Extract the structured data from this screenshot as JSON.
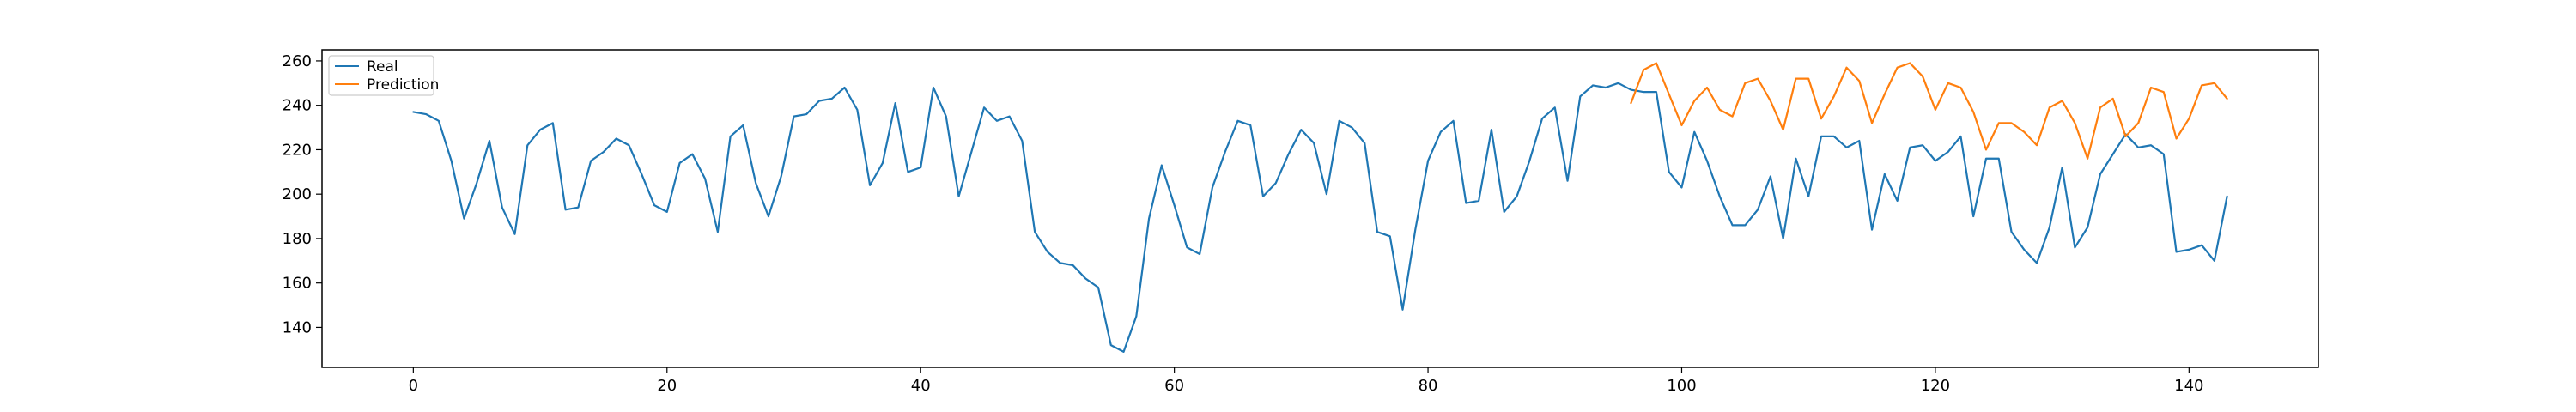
{
  "chart_data": {
    "type": "line",
    "title": "",
    "xlabel": "",
    "ylabel": "",
    "xlim": [
      -7.2,
      150.2
    ],
    "ylim": [
      122,
      265
    ],
    "xticks": [
      0,
      20,
      40,
      60,
      80,
      100,
      120,
      140
    ],
    "yticks": [
      140,
      160,
      180,
      200,
      220,
      240,
      260
    ],
    "legend": {
      "position": "top-left"
    },
    "series": [
      {
        "name": "Real",
        "color": "#1f77b4",
        "x_start": 0,
        "values": [
          237,
          236,
          233,
          215,
          189,
          205,
          224,
          194,
          182,
          222,
          229,
          232,
          193,
          194,
          215,
          219,
          225,
          222,
          209,
          195,
          192,
          214,
          218,
          207,
          183,
          226,
          231,
          205,
          190,
          208,
          235,
          236,
          242,
          243,
          248,
          238,
          204,
          214,
          241,
          210,
          212,
          248,
          235,
          199,
          219,
          239,
          233,
          235,
          224,
          183,
          174,
          169,
          168,
          162,
          158,
          132,
          129,
          145,
          189,
          213,
          195,
          176,
          173,
          203,
          219,
          233,
          231,
          199,
          205,
          218,
          229,
          223,
          200,
          233,
          230,
          223,
          183,
          181,
          148,
          184,
          215,
          228,
          233,
          196,
          197,
          229,
          192,
          199,
          215,
          234,
          239,
          206,
          244,
          249,
          248,
          250,
          247,
          246,
          246,
          210,
          203,
          228,
          215,
          199,
          186,
          186,
          193,
          208,
          180,
          216,
          199,
          226,
          226,
          221,
          224,
          184,
          209,
          197,
          221,
          222,
          215,
          219,
          226,
          190,
          216,
          216,
          183,
          175,
          169,
          185,
          212,
          176,
          185,
          209,
          218,
          227,
          221,
          222,
          218,
          174,
          175,
          177,
          170,
          199
        ]
      },
      {
        "name": "Prediction",
        "color": "#ff7f0e",
        "x_start": 96,
        "values": [
          241,
          256,
          259,
          245,
          231,
          242,
          248,
          238,
          235,
          250,
          252,
          242,
          229,
          252,
          252,
          234,
          244,
          257,
          251,
          232,
          245,
          257,
          259,
          253,
          238,
          250,
          248,
          237,
          220,
          232,
          232,
          228,
          222,
          239,
          242,
          232,
          216,
          239,
          243,
          226,
          232,
          248,
          246,
          225,
          234,
          249,
          250,
          243
        ]
      }
    ]
  }
}
